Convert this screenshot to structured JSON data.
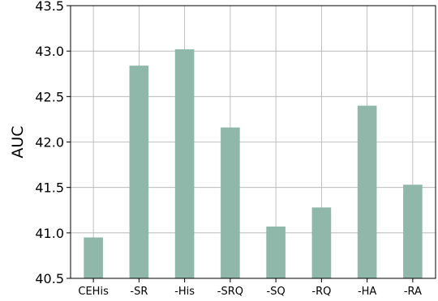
{
  "chart_data": {
    "type": "bar",
    "title": "",
    "xlabel": "",
    "ylabel": "AUC",
    "ylim": [
      40.5,
      43.5
    ],
    "yticks": [
      "40.5",
      "41.0",
      "41.5",
      "42.0",
      "42.5",
      "43.0",
      "43.5"
    ],
    "grid": true,
    "categories": [
      "CEHis",
      "-SR",
      "-His",
      "-SRQ",
      "-SQ",
      "-RQ",
      "-HA",
      "-RA"
    ],
    "values": [
      40.95,
      42.84,
      43.02,
      42.16,
      41.07,
      41.28,
      42.4,
      41.53
    ],
    "bar_color": "#8fb8ab"
  }
}
